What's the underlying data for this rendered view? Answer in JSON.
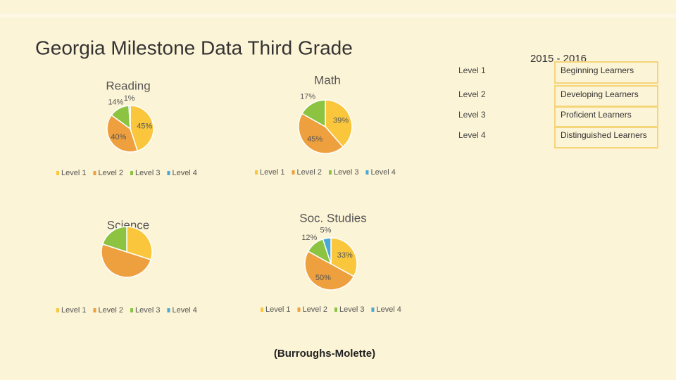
{
  "title": "Georgia Milestone Data Third Grade",
  "chart_data": [
    {
      "type": "pie",
      "title": "Reading",
      "categories": [
        "Level 1",
        "Level 2",
        "Level 3",
        "Level 4"
      ],
      "values": [
        45,
        40,
        14,
        1
      ],
      "value_labels": [
        "45%",
        "40%",
        "14%",
        "1%"
      ],
      "colors": [
        "#f9c63c",
        "#ee9f3e",
        "#8cc341",
        "#4ba7d6"
      ],
      "legend": "bottom"
    },
    {
      "type": "pie",
      "title": "Math",
      "categories": [
        "Level 1",
        "Level 2",
        "Level 3",
        "Level 4"
      ],
      "values": [
        39,
        45,
        17,
        0
      ],
      "value_labels": [
        "39%",
        "45%",
        "17%",
        null
      ],
      "colors": [
        "#f9c63c",
        "#ee9f3e",
        "#8cc341",
        "#4ba7d6"
      ],
      "legend": "bottom"
    },
    {
      "type": "pie",
      "title": "Science",
      "categories": [
        "Level 1",
        "Level 2",
        "Level 3",
        "Level 4"
      ],
      "values": [
        30,
        50,
        20,
        0
      ],
      "colors": [
        "#f9c63c",
        "#ee9f3e",
        "#8cc341",
        "#4ba7d6"
      ],
      "legend": "bottom"
    },
    {
      "type": "pie",
      "title": "Soc. Studies",
      "categories": [
        "Level 1",
        "Level 2",
        "Level 3",
        "Level 4"
      ],
      "values": [
        33,
        50,
        12,
        5
      ],
      "value_labels": [
        "33%",
        "50%",
        "12%",
        "5%"
      ],
      "colors": [
        "#f9c63c",
        "#ee9f3e",
        "#8cc341",
        "#4ba7d6"
      ],
      "legend": "bottom"
    }
  ],
  "table": {
    "title": "2015 - 2016",
    "rows": [
      [
        "Level 1",
        "Beginning Learners"
      ],
      [
        "Level 2",
        "Developing Learners"
      ],
      [
        "Level 3",
        "Proficient Learners"
      ],
      [
        "Level 4",
        "Distinguished Learners"
      ]
    ]
  },
  "footer": "(Burroughs-Molette)"
}
